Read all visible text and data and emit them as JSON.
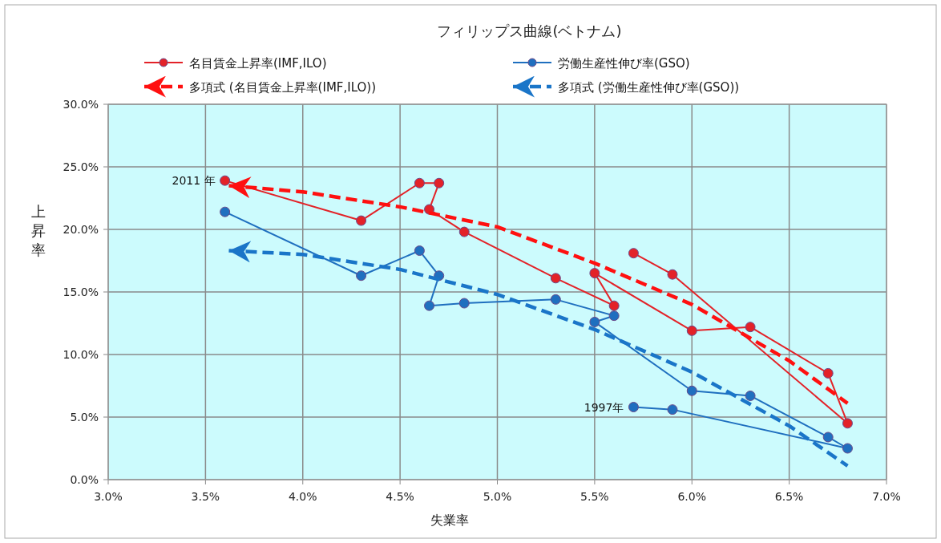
{
  "chart_data": {
    "type": "line",
    "title": "フィリップス曲線(ベトナム)",
    "xlabel": "失業率",
    "ylabel": "上昇率",
    "xlim": [
      3,
      7
    ],
    "ylim": [
      0,
      30
    ],
    "xticks": [
      {
        "value": 3,
        "label": "3.0%"
      },
      {
        "value": 3.5,
        "label": "3.5%"
      },
      {
        "value": 4,
        "label": "4.0%"
      },
      {
        "value": 4.5,
        "label": "4.5%"
      },
      {
        "value": 5,
        "label": "5.0%"
      },
      {
        "value": 5.5,
        "label": "5.5%"
      },
      {
        "value": 6,
        "label": "6.0%"
      },
      {
        "value": 6.5,
        "label": "6.5%"
      },
      {
        "value": 7,
        "label": "7.0%"
      }
    ],
    "yticks": [
      {
        "value": 0,
        "label": "0.0%"
      },
      {
        "value": 5,
        "label": "5.0%"
      },
      {
        "value": 10,
        "label": "10.0%"
      },
      {
        "value": 15,
        "label": "15.0%"
      },
      {
        "value": 20,
        "label": "20.0%"
      },
      {
        "value": 25,
        "label": "25.0%"
      },
      {
        "value": 30,
        "label": "30.0%"
      }
    ],
    "grid": true,
    "legend": "top",
    "series": [
      {
        "name": "名目賃金上昇率(IMF,ILO)",
        "color": "#e32228",
        "marker": "circle",
        "line_style": "solid",
        "x": [
          5.7,
          5.9,
          6.8,
          6.7,
          6.3,
          6.0,
          5.5,
          5.6,
          5.3,
          4.83,
          4.65,
          4.7,
          4.6,
          4.3,
          3.6
        ],
        "values": [
          18.1,
          16.4,
          4.5,
          8.5,
          12.2,
          11.9,
          16.5,
          13.9,
          16.1,
          19.8,
          21.6,
          23.7,
          23.7,
          20.7,
          23.9
        ]
      },
      {
        "name": "労働生産性伸び率(GSO)",
        "color": "#1f6fbf",
        "marker": "circle",
        "line_style": "solid",
        "x": [
          5.7,
          5.9,
          6.8,
          6.7,
          6.3,
          6.0,
          5.5,
          5.6,
          5.3,
          4.83,
          4.65,
          4.7,
          4.6,
          4.3,
          3.6
        ],
        "values": [
          5.8,
          5.6,
          2.5,
          3.4,
          6.7,
          7.1,
          12.6,
          13.1,
          14.4,
          14.1,
          13.9,
          16.3,
          18.3,
          16.3,
          21.4
        ]
      },
      {
        "name": "多項式 (名目賃金上昇率(IMF,ILO))",
        "color": "#ff1010",
        "marker": "none",
        "line_style": "dashed",
        "x": [
          3.62,
          4.0,
          4.5,
          5.0,
          5.5,
          6.0,
          6.5,
          6.8
        ],
        "values": [
          23.5,
          23.0,
          21.8,
          20.2,
          17.3,
          14.0,
          9.5,
          6.1
        ]
      },
      {
        "name": "多項式 (労働生産性伸び率(GSO))",
        "color": "#1a75c8",
        "marker": "none",
        "line_style": "dashed",
        "x": [
          3.62,
          4.0,
          4.5,
          5.0,
          5.5,
          6.0,
          6.5,
          6.8
        ],
        "values": [
          18.3,
          18.0,
          16.8,
          14.8,
          12.0,
          8.6,
          4.3,
          1.1
        ]
      }
    ],
    "annotations": [
      {
        "text": "2011 年",
        "x": 3.6,
        "y": 23.9
      },
      {
        "text": "1997年",
        "x": 5.7,
        "y": 5.8
      }
    ]
  }
}
